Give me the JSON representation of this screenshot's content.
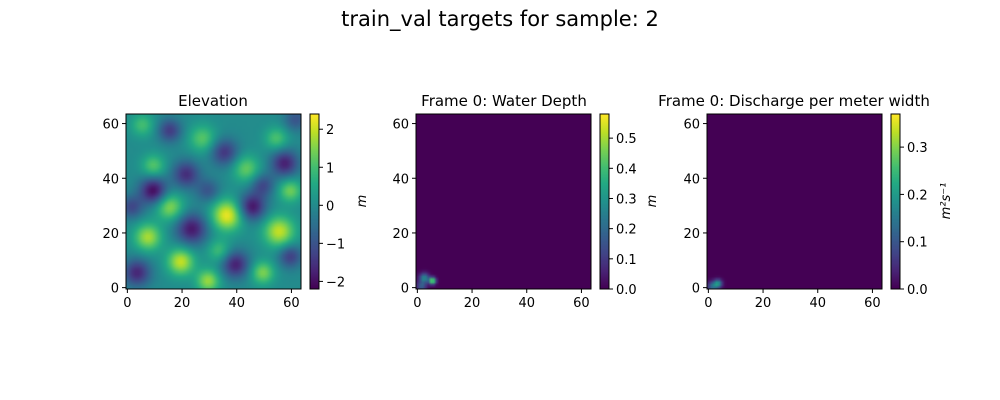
{
  "suptitle": "train_val targets for sample: 2",
  "colormap": "viridis",
  "chart_data": [
    {
      "type": "heatmap",
      "title": "Elevation",
      "xlim": [
        0,
        64
      ],
      "ylim": [
        0,
        64
      ],
      "xticks": [
        0,
        20,
        40,
        60
      ],
      "yticks": [
        0,
        20,
        40,
        60
      ],
      "colorbar": {
        "label": "m",
        "range": [
          -2.2,
          2.4
        ],
        "ticks": [
          "−2",
          "−1",
          "0",
          "1",
          "2"
        ],
        "tick_values": [
          -2,
          -1,
          0,
          1,
          2
        ]
      },
      "field": {
        "description": "smooth random terrain",
        "bumps": [
          {
            "x": 37,
            "y": 27,
            "amp": 2.3,
            "s": 4
          },
          {
            "x": 56,
            "y": 21,
            "amp": 2.0,
            "s": 4
          },
          {
            "x": 8,
            "y": 19,
            "amp": 1.8,
            "s": 3.5
          },
          {
            "x": 20,
            "y": 10,
            "amp": 2.0,
            "s": 3.5
          },
          {
            "x": 16,
            "y": 30,
            "amp": 1.6,
            "s": 3.5
          },
          {
            "x": 30,
            "y": 3,
            "amp": 1.7,
            "s": 3
          },
          {
            "x": 50,
            "y": 6,
            "amp": 1.5,
            "s": 3
          },
          {
            "x": 60,
            "y": 36,
            "amp": 1.4,
            "s": 3
          },
          {
            "x": 44,
            "y": 44,
            "amp": 1.3,
            "s": 3.5
          },
          {
            "x": 28,
            "y": 55,
            "amp": 1.2,
            "s": 3.5
          },
          {
            "x": 10,
            "y": 45,
            "amp": 1.2,
            "s": 3
          },
          {
            "x": 55,
            "y": 55,
            "amp": 1.1,
            "s": 3
          },
          {
            "x": 34,
            "y": 14,
            "amp": 1.0,
            "s": 3
          },
          {
            "x": 6,
            "y": 60,
            "amp": 1.0,
            "s": 3
          },
          {
            "x": 10,
            "y": 36,
            "amp": -2.1,
            "s": 3.5
          },
          {
            "x": 24,
            "y": 22,
            "amp": -1.9,
            "s": 4
          },
          {
            "x": 46,
            "y": 30,
            "amp": -2.0,
            "s": 3.5
          },
          {
            "x": 40,
            "y": 9,
            "amp": -1.8,
            "s": 3.5
          },
          {
            "x": 58,
            "y": 46,
            "amp": -1.8,
            "s": 3.5
          },
          {
            "x": 4,
            "y": 6,
            "amp": -1.7,
            "s": 3.5
          },
          {
            "x": 22,
            "y": 42,
            "amp": -1.6,
            "s": 3.5
          },
          {
            "x": 36,
            "y": 50,
            "amp": -1.5,
            "s": 3.5
          },
          {
            "x": 60,
            "y": 12,
            "amp": -1.4,
            "s": 3
          },
          {
            "x": 16,
            "y": 58,
            "amp": -1.4,
            "s": 3
          },
          {
            "x": 50,
            "y": 38,
            "amp": -1.2,
            "s": 3
          },
          {
            "x": 2,
            "y": 30,
            "amp": -1.2,
            "s": 3
          },
          {
            "x": 30,
            "y": 36,
            "amp": -1.0,
            "s": 3
          },
          {
            "x": 62,
            "y": 62,
            "amp": -1.0,
            "s": 3
          }
        ]
      }
    },
    {
      "type": "heatmap",
      "title": "Frame 0: Water Depth",
      "xlim": [
        0,
        64
      ],
      "ylim": [
        0,
        64
      ],
      "xticks": [
        0,
        20,
        40,
        60
      ],
      "yticks": [
        0,
        20,
        40,
        60
      ],
      "colorbar": {
        "label": "m",
        "range": [
          0.0,
          0.58
        ],
        "ticks": [
          "0.0",
          "0.1",
          "0.2",
          "0.3",
          "0.4",
          "0.5"
        ],
        "tick_values": [
          0.0,
          0.1,
          0.2,
          0.3,
          0.4,
          0.5
        ]
      },
      "field": {
        "description": "mostly zero with a small wet spot near origin",
        "bumps": [
          {
            "x": 6,
            "y": 3,
            "amp": 0.56,
            "s": 0.8
          },
          {
            "x": 3,
            "y": 4,
            "amp": 0.28,
            "s": 1.2
          },
          {
            "x": 2,
            "y": 1,
            "amp": 0.18,
            "s": 1.2
          }
        ]
      }
    },
    {
      "type": "heatmap",
      "title": "Frame 0: Discharge per meter width",
      "xlim": [
        0,
        64
      ],
      "ylim": [
        0,
        64
      ],
      "xticks": [
        0,
        20,
        40,
        60
      ],
      "yticks": [
        0,
        20,
        40,
        60
      ],
      "colorbar": {
        "label": "m²s⁻¹",
        "range": [
          0.0,
          0.37
        ],
        "ticks": [
          "0.0",
          "0.1",
          "0.2",
          "0.3"
        ],
        "tick_values": [
          0.0,
          0.1,
          0.2,
          0.3
        ]
      },
      "field": {
        "description": "mostly zero with a small discharge spot near origin",
        "bumps": [
          {
            "x": 4,
            "y": 2,
            "amp": 0.2,
            "s": 1.0
          },
          {
            "x": 2,
            "y": 1,
            "amp": 0.14,
            "s": 1.2
          }
        ]
      }
    }
  ]
}
